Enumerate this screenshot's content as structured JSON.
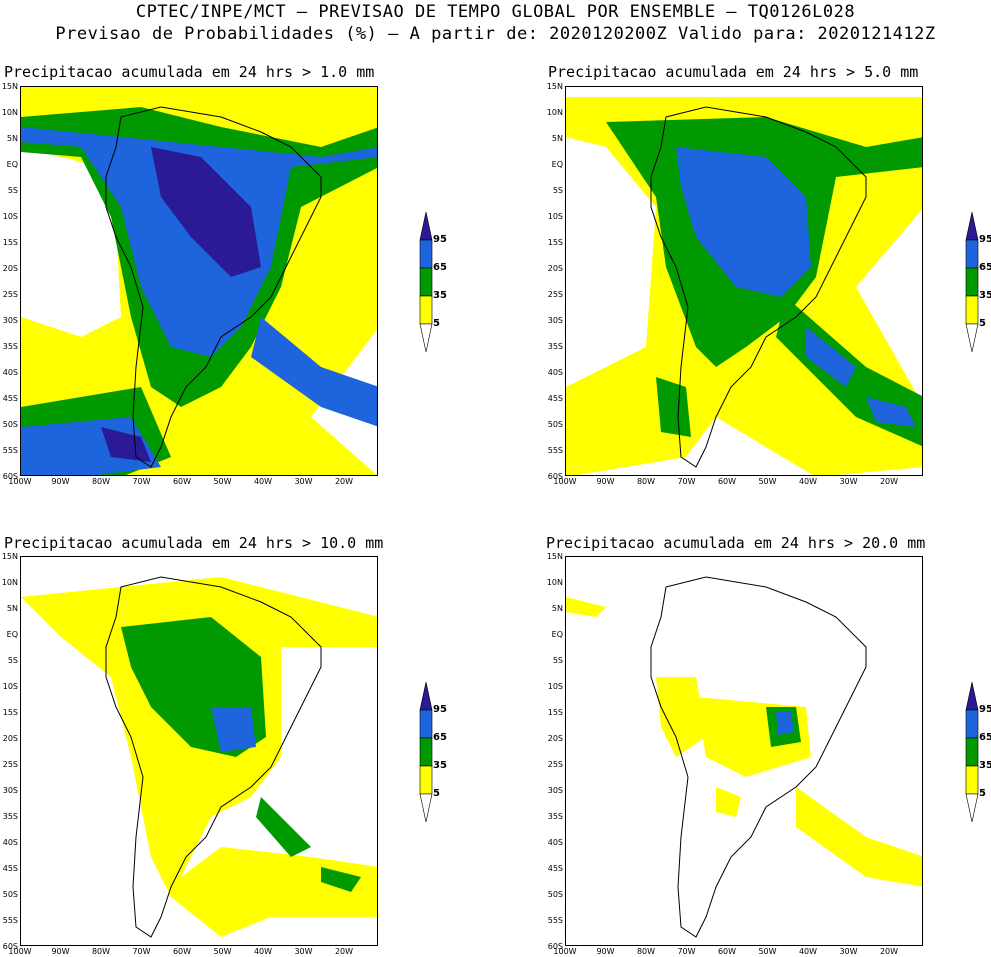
{
  "header": {
    "line1": "CPTEC/INPE/MCT – PREVISAO DE TEMPO GLOBAL POR ENSEMBLE – TQ0126L028",
    "line2": "Previsao de Probabilidades (%) –  A partir de: 2020120200Z  Valido para: 2020121412Z"
  },
  "colors": {
    "yellow": "#ffff00",
    "green": "#009900",
    "blue": "#1e64dc",
    "purple": "#2a1a96",
    "coast": "#000000"
  },
  "lat_labels": [
    "15N",
    "10N",
    "5N",
    "EQ",
    "5S",
    "10S",
    "15S",
    "20S",
    "25S",
    "30S",
    "35S",
    "40S",
    "45S",
    "50S",
    "55S",
    "60S"
  ],
  "lon_labels": [
    "100W",
    "90W",
    "80W",
    "70W",
    "60W",
    "50W",
    "40W",
    "30W",
    "20W"
  ],
  "legend_labels": [
    "95",
    "65",
    "35",
    "5"
  ],
  "panels": [
    {
      "title": "Precipitacao acumulada em 24 hrs > 1.0 mm"
    },
    {
      "title": "Precipitacao acumulada em 24 hrs > 5.0 mm"
    },
    {
      "title": "Precipitacao acumulada em 24 hrs > 10.0 mm"
    },
    {
      "title": "Precipitacao acumulada em 24 hrs > 20.0 mm"
    }
  ]
}
